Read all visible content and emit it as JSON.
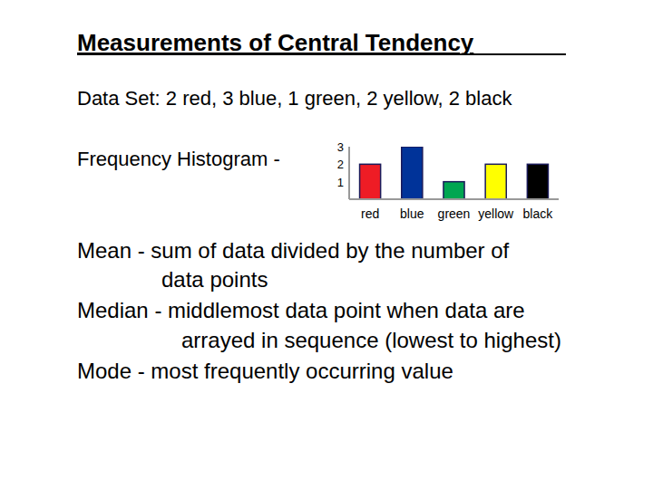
{
  "slide": {
    "title": "Measurements of Central Tendency",
    "data_set": "Data Set: 2 red, 3 blue, 1 green, 2 yellow, 2 black",
    "histogram_label": "Frequency Histogram -",
    "definitions": [
      {
        "lines": [
          "Mean - sum of data divided by the number of",
          "data points"
        ]
      },
      {
        "lines": [
          "Median - middlemost data point when data are",
          "arrayed in sequence (lowest to highest)"
        ]
      },
      {
        "lines": [
          "Mode - most frequently occurring value"
        ]
      }
    ]
  },
  "chart_data": {
    "type": "bar",
    "categories": [
      "red",
      "blue",
      "green",
      "yellow",
      "black"
    ],
    "values": [
      2,
      3,
      1,
      2,
      2
    ],
    "colors": [
      "#ee1c25",
      "#003399",
      "#00a651",
      "#ffff00",
      "#000000"
    ],
    "ylim": [
      0,
      3
    ],
    "yticks": [
      1,
      2,
      3
    ],
    "grid": false
  }
}
